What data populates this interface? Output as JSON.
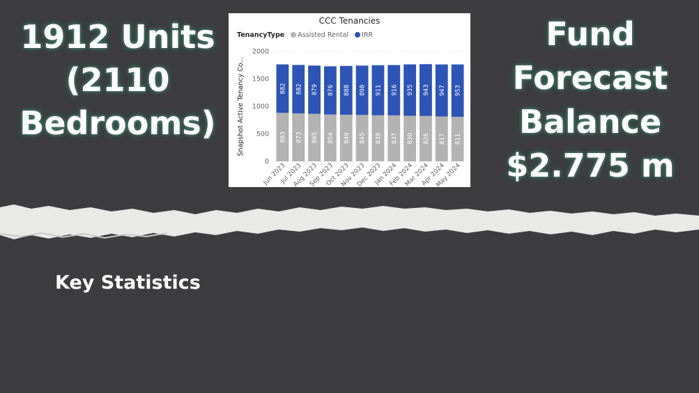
{
  "left_statistic": {
    "line1": "1912 Units",
    "line2": "(2110",
    "line3": "Bedrooms)"
  },
  "right_statistic": {
    "line1": "Fund",
    "line2": "Forecast",
    "line3": "Balance",
    "line4": "$2.775 m"
  },
  "section_heading": "Key Statistics",
  "colors": {
    "background": "#3d3d3f",
    "assisted_rental": "#b3b3b3",
    "irr": "#2e55b5",
    "glow": "#4c7d6d"
  },
  "chart_data": {
    "type": "bar",
    "stacked": true,
    "title": "CCC Tenancies",
    "legend_title": "TenancyType",
    "legend_position": "top-left",
    "ylabel": "Snapshot Active Tenancy Co...",
    "xlabel": "",
    "ylim": [
      0,
      2000
    ],
    "yticks": [
      0,
      500,
      1000,
      1500,
      2000
    ],
    "grid": true,
    "categories": [
      "Jun 2023",
      "Jul 2023",
      "Aug 2023",
      "Sep 2023",
      "Oct 2023",
      "Nov 2023",
      "Dec 2023",
      "Jan 2024",
      "Feb 2024",
      "Mar 2024",
      "Apr 2024",
      "May 2024"
    ],
    "series": [
      {
        "name": "Assisted Rental",
        "color": "#b3b3b3",
        "values": [
          883,
          873,
          865,
          854,
          849,
          845,
          839,
          837,
          830,
          826,
          817,
          811
        ]
      },
      {
        "name": "IRR",
        "color": "#2e55b5",
        "values": [
          882,
          882,
          879,
          876,
          888,
          898,
          911,
          916,
          935,
          943,
          947,
          953
        ]
      }
    ]
  }
}
